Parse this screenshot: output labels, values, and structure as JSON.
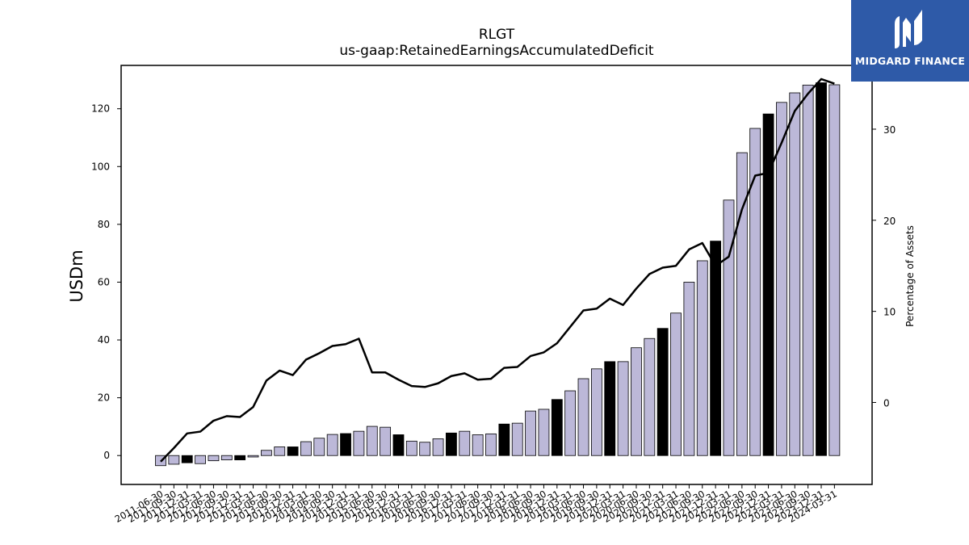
{
  "chart_data": {
    "type": "bar+line",
    "title": "RLGT",
    "subtitle": "us-gaap:RetainedEarningsAccumulatedDeficit",
    "ylabel": "USDm",
    "y2label": "Percentage of Assets",
    "ylim": [
      -10,
      135
    ],
    "y2lim": [
      -9,
      37
    ],
    "yticks": [
      0,
      20,
      40,
      60,
      80,
      100,
      120
    ],
    "y2ticks": [
      0,
      10,
      20,
      30
    ],
    "grid": false,
    "colors": {
      "bar": "#bcb8d8",
      "bar_highlight": "#000000",
      "bar_edge": "#000000",
      "line": "#000000"
    },
    "categories": [
      "2011-06-30",
      "2011-09-30",
      "2011-12-31",
      "2012-03-31",
      "2012-06-30",
      "2012-09-30",
      "2012-12-31",
      "2013-03-31",
      "2013-06-30",
      "2013-09-30",
      "2013-12-31",
      "2014-03-31",
      "2014-06-30",
      "2014-09-30",
      "2014-12-31",
      "2015-03-31",
      "2015-06-30",
      "2015-09-30",
      "2015-12-31",
      "2016-03-31",
      "2016-06-30",
      "2016-09-30",
      "2016-12-31",
      "2017-03-31",
      "2017-06-30",
      "2017-09-30",
      "2017-12-31",
      "2018-03-31",
      "2018-06-30",
      "2018-09-30",
      "2018-12-31",
      "2019-03-31",
      "2019-06-30",
      "2019-09-30",
      "2019-12-31",
      "2020-03-31",
      "2020-06-30",
      "2020-09-30",
      "2020-12-31",
      "2021-03-31",
      "2021-06-30",
      "2021-09-30",
      "2021-12-31",
      "2022-03-31",
      "2022-06-30",
      "2022-09-30",
      "2022-12-31",
      "2023-03-31",
      "2023-06-30",
      "2023-09-30",
      "2023-12-31",
      "2024-03-31"
    ],
    "series": [
      {
        "name": "USDm",
        "type": "bar",
        "values": [
          -3.5,
          -3.0,
          -2.5,
          -2.8,
          -1.8,
          -1.5,
          -1.5,
          -0.5,
          1.8,
          3.0,
          3.0,
          4.8,
          6.0,
          7.3,
          7.6,
          8.4,
          10.1,
          9.8,
          7.2,
          5.0,
          4.6,
          5.8,
          7.8,
          8.4,
          7.2,
          7.5,
          10.9,
          11.2,
          15.4,
          16.0,
          19.4,
          22.4,
          26.6,
          30.0,
          32.5,
          32.5,
          37.3,
          40.5,
          44.0,
          49.3,
          60.0,
          67.4,
          74.2,
          88.4,
          104.8,
          113.2,
          118.2,
          122.2,
          125.5,
          128.2,
          129.0,
          128.3
        ],
        "highlight_indices": [
          2,
          6,
          10,
          14,
          18,
          22,
          26,
          30,
          34,
          38,
          42,
          46,
          50
        ]
      },
      {
        "name": "Percentage of Assets",
        "type": "line",
        "axis": "right",
        "values": [
          -6.5,
          -5.0,
          -3.4,
          -3.2,
          -2.0,
          -1.5,
          -1.6,
          -0.5,
          2.4,
          3.5,
          3.0,
          4.7,
          5.4,
          6.2,
          6.4,
          7.0,
          3.3,
          3.3,
          2.5,
          1.8,
          1.7,
          2.1,
          2.9,
          3.2,
          2.5,
          2.6,
          3.8,
          3.9,
          5.1,
          5.5,
          6.5,
          8.3,
          10.1,
          10.3,
          11.4,
          10.7,
          12.5,
          14.1,
          14.8,
          15.0,
          16.8,
          17.5,
          15.0,
          16.0,
          21.2,
          24.9,
          25.2,
          28.5,
          32.0,
          33.9,
          35.5,
          35.0
        ]
      }
    ]
  },
  "logo": {
    "text": "MIDGARD FINANCE",
    "background": "#2e5aa8"
  }
}
